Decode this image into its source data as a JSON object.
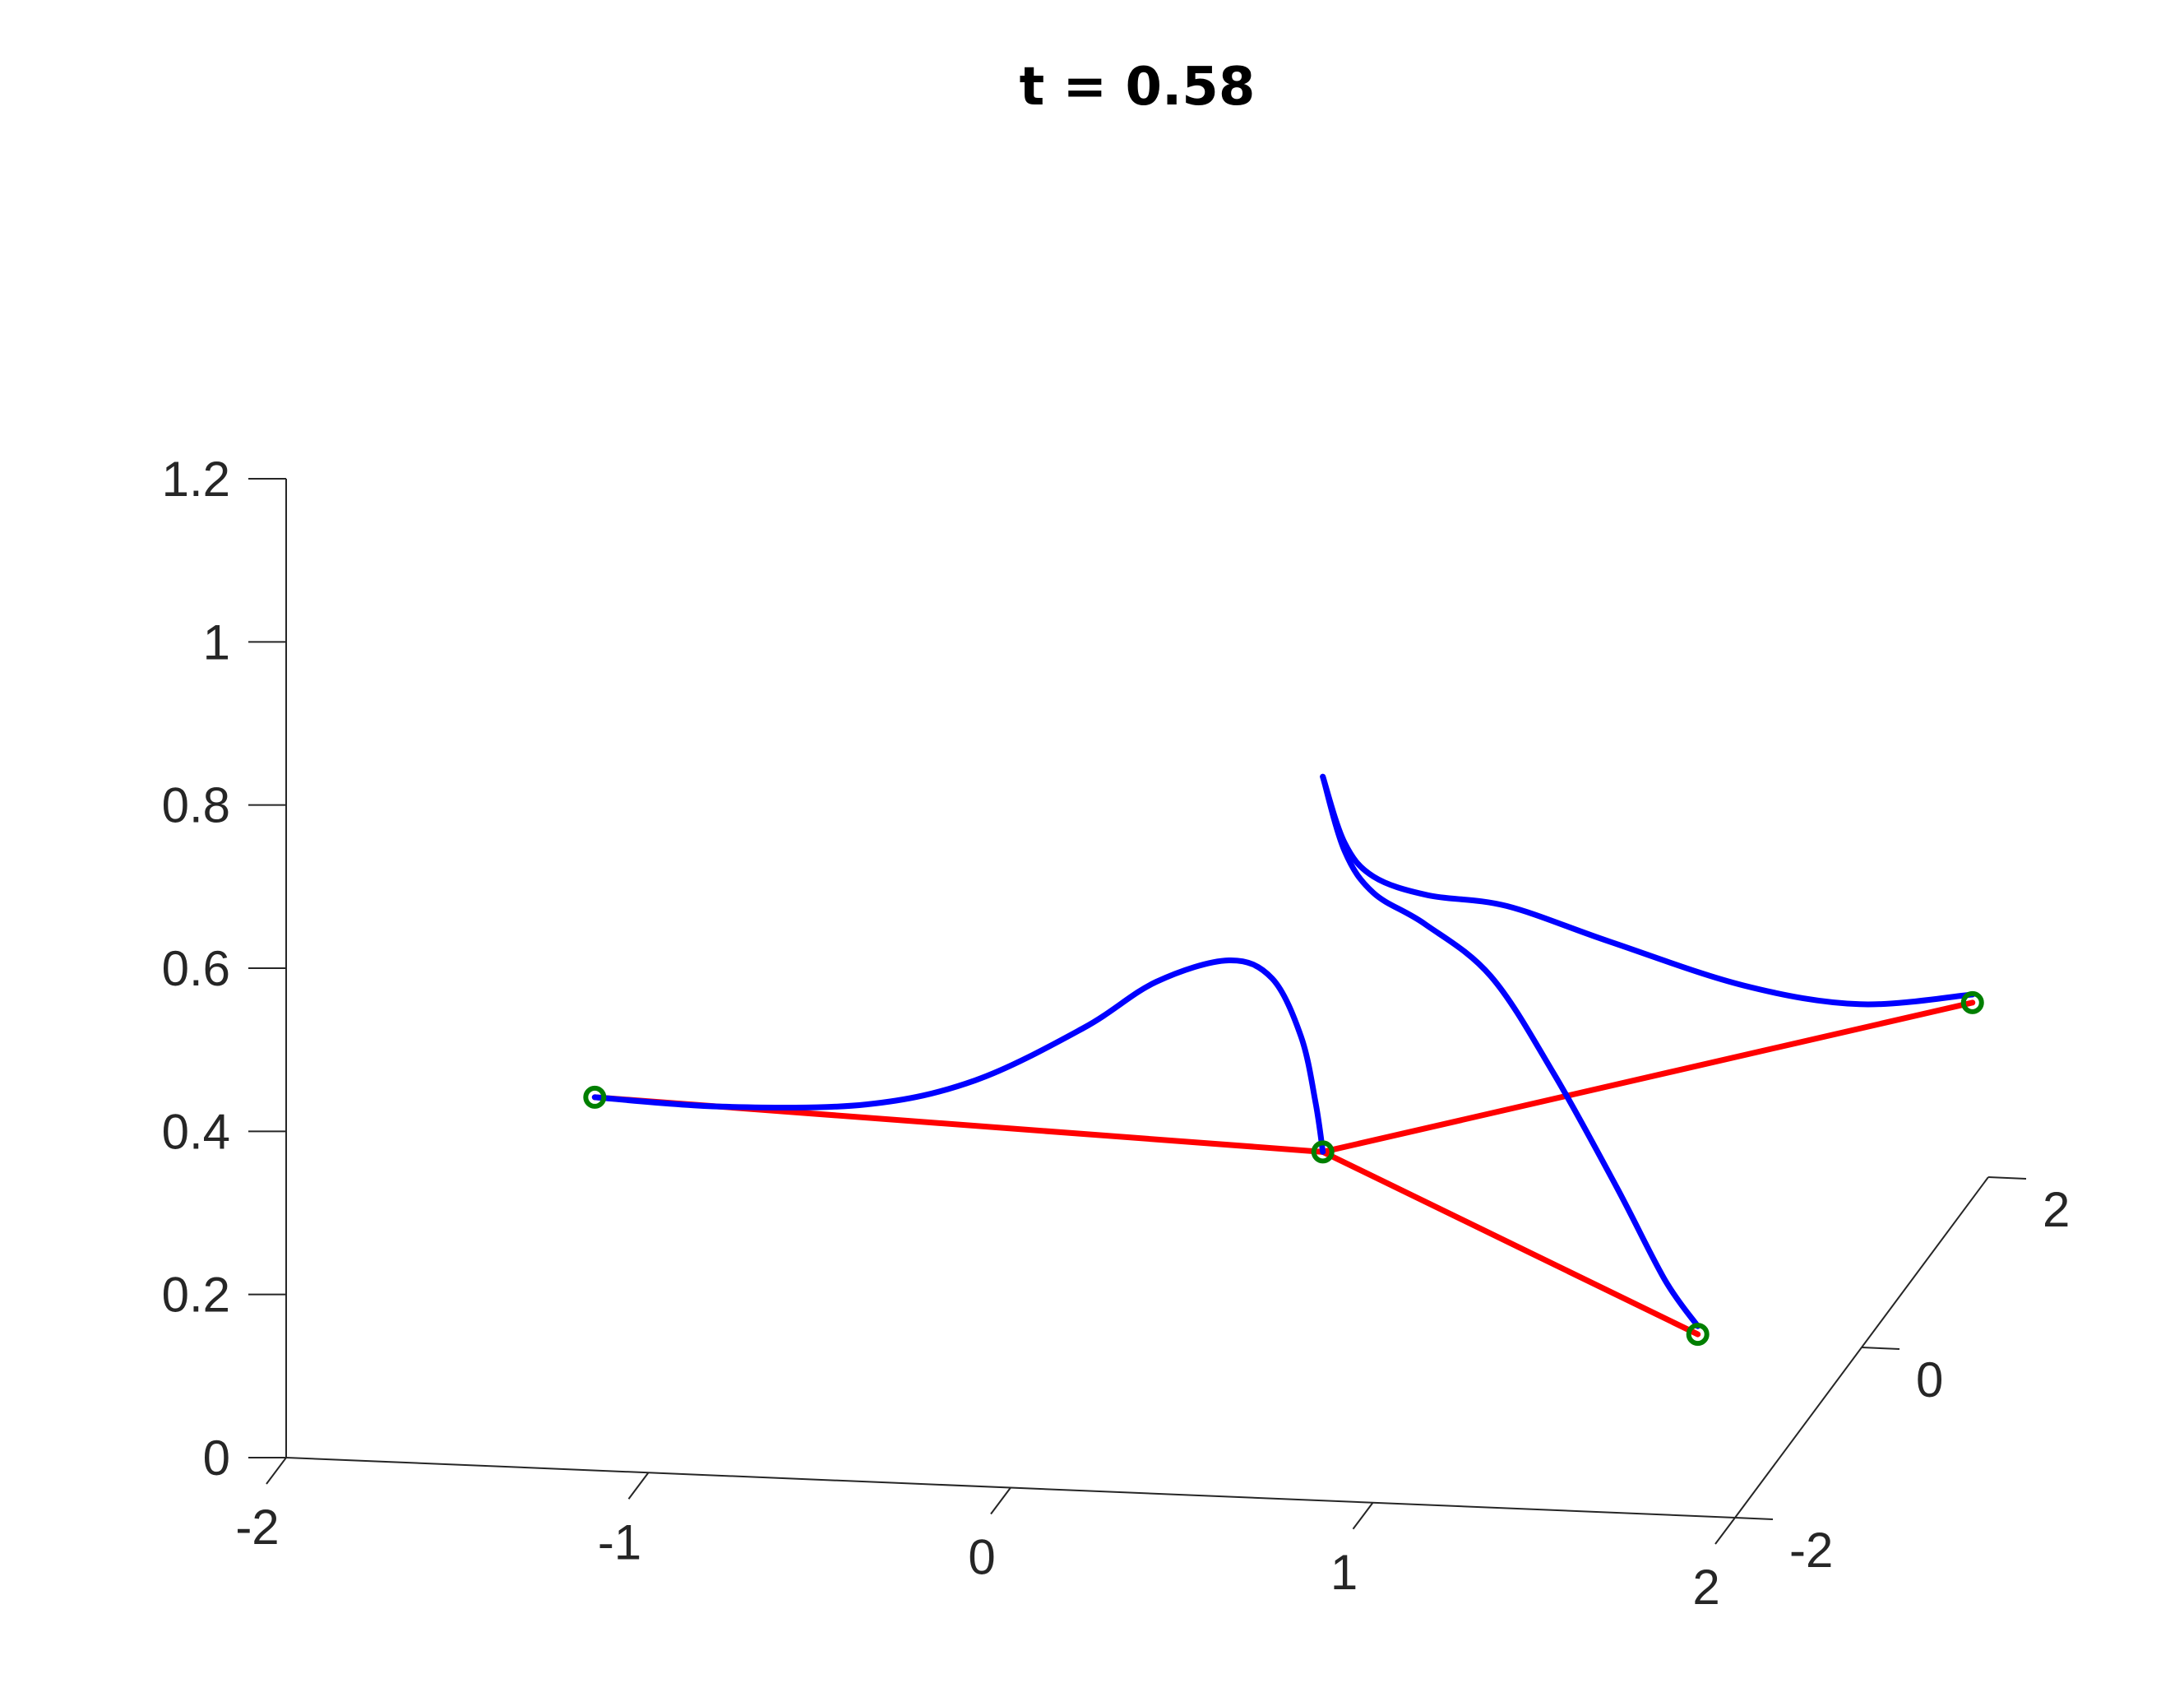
{
  "chart_data": {
    "type": "line",
    "title": "t = 0.58",
    "xlabel": "",
    "ylabel": "",
    "zlabel": "",
    "xlim": [
      -2,
      2
    ],
    "ylim": [
      -2,
      2
    ],
    "zlim": [
      0,
      1.2
    ],
    "x_ticks": [
      "-2",
      "-1",
      "0",
      "1",
      "2"
    ],
    "y_ticks": [
      "-2",
      "0",
      "2"
    ],
    "z_ticks": [
      "0",
      "0.2",
      "0.4",
      "0.6",
      "0.8",
      "1",
      "1.2"
    ],
    "grid": false,
    "colors": {
      "edges": "#ff0000",
      "curves": "#0000ff",
      "nodes": "#007f00"
    },
    "nodes": [
      {
        "x": -1.55,
        "y": 0.3,
        "z": 0.21
      },
      {
        "x": 0.46,
        "y": 0.3,
        "z": 0.18
      },
      {
        "x": 2.0,
        "y": 1.75,
        "z": 0.24
      },
      {
        "x": 1.6,
        "y": -0.3,
        "z": 0.04
      }
    ],
    "edges": [
      {
        "from": 0,
        "to": 1
      },
      {
        "from": 1,
        "to": 2
      },
      {
        "from": 1,
        "to": 3
      }
    ],
    "curves": [
      {
        "name": "",
        "points": [
          [
            -1.55,
            0.3,
            0.21
          ],
          [
            -1.2,
            0.3,
            0.205
          ],
          [
            -0.8,
            0.3,
            0.215
          ],
          [
            -0.5,
            0.3,
            0.25
          ],
          [
            -0.2,
            0.3,
            0.32
          ],
          [
            0.0,
            0.3,
            0.38
          ],
          [
            0.2,
            0.3,
            0.41
          ],
          [
            0.32,
            0.3,
            0.39
          ],
          [
            0.4,
            0.3,
            0.32
          ],
          [
            0.44,
            0.3,
            0.24
          ],
          [
            0.46,
            0.3,
            0.18
          ]
        ]
      },
      {
        "name": "",
        "points": [
          [
            0.46,
            0.3,
            0.64
          ],
          [
            0.52,
            0.3,
            0.56
          ],
          [
            0.6,
            0.3,
            0.52
          ],
          [
            0.75,
            0.3,
            0.5
          ],
          [
            0.95,
            0.4,
            0.48
          ],
          [
            1.2,
            0.6,
            0.42
          ],
          [
            1.5,
            1.0,
            0.33
          ],
          [
            1.75,
            1.4,
            0.27
          ],
          [
            2.0,
            1.75,
            0.25
          ]
        ]
      },
      {
        "name": "",
        "points": [
          [
            0.46,
            0.3,
            0.64
          ],
          [
            0.52,
            0.3,
            0.55
          ],
          [
            0.6,
            0.3,
            0.5
          ],
          [
            0.75,
            0.25,
            0.47
          ],
          [
            0.95,
            0.15,
            0.42
          ],
          [
            1.15,
            0.0,
            0.32
          ],
          [
            1.35,
            -0.15,
            0.2
          ],
          [
            1.5,
            -0.25,
            0.1
          ],
          [
            1.6,
            -0.3,
            0.05
          ]
        ]
      }
    ]
  }
}
